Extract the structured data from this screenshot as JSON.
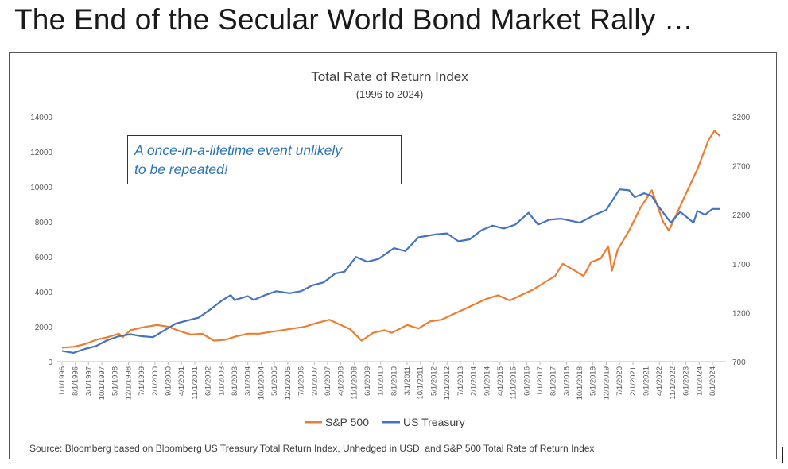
{
  "slide_title": "The End of the Secular World Bond Market Rally …",
  "callout": {
    "line1": "A once-in-a-lifetime event unlikely",
    "line2": "to be repeated!"
  },
  "source": "Source: Bloomberg based on Bloomberg US Treasury Total Return Index, Unhedged in USD, and S&P 500 Total Rate of Return Index",
  "colors": {
    "sp500": "#ed7d31",
    "treasury": "#4472c4",
    "gridline": "#d9d9d9",
    "axis_text": "#595959",
    "title_text": "#404040"
  },
  "chart_data": {
    "type": "line",
    "title": "Total Rate of Return Index",
    "subtitle": "(1996 to 2024)",
    "xlabel": "",
    "ylabel": "",
    "grid": false,
    "legend_position": "bottom",
    "y_left": {
      "range": [
        0,
        14000
      ],
      "ticks": [
        "0",
        "2000",
        "4000",
        "6000",
        "8000",
        "10000",
        "12000",
        "14000"
      ]
    },
    "y_right": {
      "range": [
        700,
        3200
      ],
      "ticks": [
        "700",
        "1200",
        "1700",
        "2200",
        "2700",
        "3200"
      ]
    },
    "x_range": [
      "1996-01-01",
      "2024-12-31"
    ],
    "x_ticks": [
      "1/1/1996",
      "8/1/1996",
      "3/1/1997",
      "10/1/1997",
      "5/1/1998",
      "12/1/1998",
      "7/1/1999",
      "2/1/2000",
      "9/1/2000",
      "4/1/2001",
      "11/1/2001",
      "6/1/2002",
      "1/1/2003",
      "8/1/2003",
      "3/1/2004",
      "10/1/2004",
      "5/1/2005",
      "12/1/2005",
      "7/1/2006",
      "2/1/2007",
      "9/1/2007",
      "4/1/2008",
      "11/1/2008",
      "6/1/2009",
      "1/1/2010",
      "8/1/2010",
      "3/1/2011",
      "10/1/2011",
      "5/1/2012",
      "12/1/2012",
      "7/1/2013",
      "2/1/2014",
      "9/1/2014",
      "4/1/2015",
      "11/1/2015",
      "6/1/2016",
      "1/1/2017",
      "8/1/2017",
      "3/1/2018",
      "10/1/2018",
      "5/1/2019",
      "12/1/2019",
      "7/1/2020",
      "2/1/2021",
      "9/1/2021",
      "4/1/2022",
      "11/1/2022",
      "6/1/2023",
      "1/1/2024",
      "8/1/2024"
    ],
    "series": [
      {
        "name": "S&P 500",
        "axis": "left",
        "points": [
          [
            "1996-01-01",
            800
          ],
          [
            "1996-07-01",
            850
          ],
          [
            "1997-01-01",
            1000
          ],
          [
            "1997-07-01",
            1250
          ],
          [
            "1998-01-01",
            1400
          ],
          [
            "1998-07-01",
            1600
          ],
          [
            "1998-09-01",
            1400
          ],
          [
            "1999-01-01",
            1800
          ],
          [
            "1999-07-01",
            1950
          ],
          [
            "2000-03-01",
            2100
          ],
          [
            "2000-09-01",
            2000
          ],
          [
            "2001-03-01",
            1750
          ],
          [
            "2001-09-01",
            1550
          ],
          [
            "2002-03-01",
            1600
          ],
          [
            "2002-09-01",
            1200
          ],
          [
            "2003-03-01",
            1250
          ],
          [
            "2003-09-01",
            1450
          ],
          [
            "2004-03-01",
            1600
          ],
          [
            "2004-09-01",
            1600
          ],
          [
            "2005-03-01",
            1700
          ],
          [
            "2005-09-01",
            1800
          ],
          [
            "2006-03-01",
            1900
          ],
          [
            "2006-09-01",
            2000
          ],
          [
            "2007-03-01",
            2200
          ],
          [
            "2007-10-01",
            2400
          ],
          [
            "2008-03-01",
            2150
          ],
          [
            "2008-09-01",
            1850
          ],
          [
            "2009-03-01",
            1200
          ],
          [
            "2009-09-01",
            1650
          ],
          [
            "2010-03-01",
            1800
          ],
          [
            "2010-07-01",
            1650
          ],
          [
            "2011-03-01",
            2100
          ],
          [
            "2011-09-01",
            1900
          ],
          [
            "2012-03-01",
            2300
          ],
          [
            "2012-09-01",
            2400
          ],
          [
            "2013-03-01",
            2700
          ],
          [
            "2013-09-01",
            3000
          ],
          [
            "2014-03-01",
            3300
          ],
          [
            "2014-09-01",
            3600
          ],
          [
            "2015-03-01",
            3800
          ],
          [
            "2015-09-01",
            3500
          ],
          [
            "2016-03-01",
            3800
          ],
          [
            "2016-09-01",
            4100
          ],
          [
            "2017-03-01",
            4500
          ],
          [
            "2017-09-01",
            4900
          ],
          [
            "2018-01-01",
            5600
          ],
          [
            "2018-06-01",
            5300
          ],
          [
            "2018-12-01",
            4900
          ],
          [
            "2019-04-01",
            5700
          ],
          [
            "2019-09-01",
            5900
          ],
          [
            "2020-01-01",
            6600
          ],
          [
            "2020-03-01",
            5200
          ],
          [
            "2020-06-01",
            6400
          ],
          [
            "2020-12-01",
            7500
          ],
          [
            "2021-06-01",
            8800
          ],
          [
            "2021-12-01",
            9800
          ],
          [
            "2022-06-01",
            8000
          ],
          [
            "2022-09-01",
            7500
          ],
          [
            "2022-12-01",
            8200
          ],
          [
            "2023-06-01",
            9600
          ],
          [
            "2023-12-01",
            11000
          ],
          [
            "2024-06-01",
            12700
          ],
          [
            "2024-09-01",
            13200
          ],
          [
            "2024-12-01",
            12900
          ]
        ]
      },
      {
        "name": "US Treasury",
        "axis": "right",
        "points": [
          [
            "1996-01-01",
            810
          ],
          [
            "1996-07-01",
            790
          ],
          [
            "1997-01-01",
            830
          ],
          [
            "1997-07-01",
            860
          ],
          [
            "1998-01-01",
            920
          ],
          [
            "1998-07-01",
            960
          ],
          [
            "1999-01-01",
            980
          ],
          [
            "1999-07-01",
            960
          ],
          [
            "2000-01-01",
            950
          ],
          [
            "2000-07-01",
            1020
          ],
          [
            "2001-01-01",
            1090
          ],
          [
            "2001-07-01",
            1120
          ],
          [
            "2002-01-01",
            1150
          ],
          [
            "2002-07-01",
            1230
          ],
          [
            "2003-01-01",
            1320
          ],
          [
            "2003-06-01",
            1380
          ],
          [
            "2003-08-01",
            1330
          ],
          [
            "2004-03-01",
            1370
          ],
          [
            "2004-06-01",
            1330
          ],
          [
            "2004-12-01",
            1380
          ],
          [
            "2005-06-01",
            1420
          ],
          [
            "2006-01-01",
            1400
          ],
          [
            "2006-07-01",
            1420
          ],
          [
            "2007-01-01",
            1480
          ],
          [
            "2007-07-01",
            1510
          ],
          [
            "2008-01-01",
            1600
          ],
          [
            "2008-06-01",
            1620
          ],
          [
            "2008-12-01",
            1770
          ],
          [
            "2009-06-01",
            1720
          ],
          [
            "2009-12-01",
            1750
          ],
          [
            "2010-08-01",
            1860
          ],
          [
            "2011-02-01",
            1830
          ],
          [
            "2011-09-01",
            1970
          ],
          [
            "2012-06-01",
            2000
          ],
          [
            "2012-12-01",
            2010
          ],
          [
            "2013-06-01",
            1930
          ],
          [
            "2013-12-01",
            1950
          ],
          [
            "2014-06-01",
            2040
          ],
          [
            "2014-12-01",
            2090
          ],
          [
            "2015-06-01",
            2060
          ],
          [
            "2015-12-01",
            2100
          ],
          [
            "2016-07-01",
            2220
          ],
          [
            "2016-12-01",
            2100
          ],
          [
            "2017-06-01",
            2150
          ],
          [
            "2017-12-01",
            2160
          ],
          [
            "2018-10-01",
            2120
          ],
          [
            "2019-06-01",
            2200
          ],
          [
            "2019-12-01",
            2250
          ],
          [
            "2020-07-01",
            2460
          ],
          [
            "2020-12-01",
            2450
          ],
          [
            "2021-03-01",
            2380
          ],
          [
            "2021-08-01",
            2420
          ],
          [
            "2021-12-01",
            2390
          ],
          [
            "2022-03-01",
            2300
          ],
          [
            "2022-10-01",
            2120
          ],
          [
            "2023-03-01",
            2230
          ],
          [
            "2023-10-01",
            2120
          ],
          [
            "2023-12-01",
            2240
          ],
          [
            "2024-04-01",
            2200
          ],
          [
            "2024-08-01",
            2260
          ],
          [
            "2024-12-01",
            2260
          ]
        ]
      }
    ]
  }
}
